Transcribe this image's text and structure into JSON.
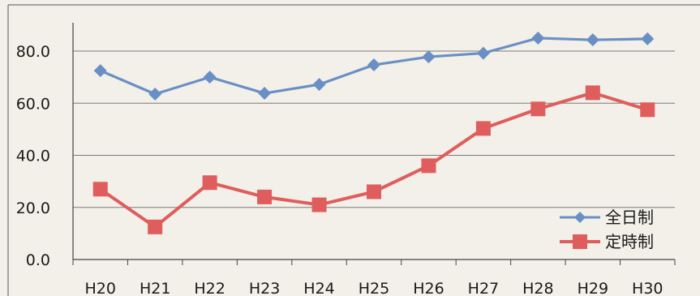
{
  "chart_data": {
    "type": "line",
    "categories": [
      "H20",
      "H21",
      "H22",
      "H23",
      "H24",
      "H25",
      "H26",
      "H27",
      "H28",
      "H29",
      "H30"
    ],
    "series": [
      {
        "name": "全日制",
        "color": "#6a8fc4",
        "marker": "diamond",
        "values": [
          72.5,
          63.5,
          70.0,
          63.8,
          67.2,
          74.7,
          77.8,
          79.2,
          85.0,
          84.3,
          84.7
        ]
      },
      {
        "name": "定時制",
        "color": "#df5d5d",
        "marker": "square",
        "values": [
          27.0,
          12.5,
          29.5,
          24.0,
          21.0,
          26.0,
          36.0,
          50.3,
          57.8,
          64.0,
          57.5
        ]
      }
    ],
    "ylim": [
      0,
      80
    ],
    "yticks": [
      "0.0",
      "20.0",
      "40.0",
      "60.0",
      "80.0"
    ],
    "grid": true,
    "legend": "bottom-right"
  }
}
